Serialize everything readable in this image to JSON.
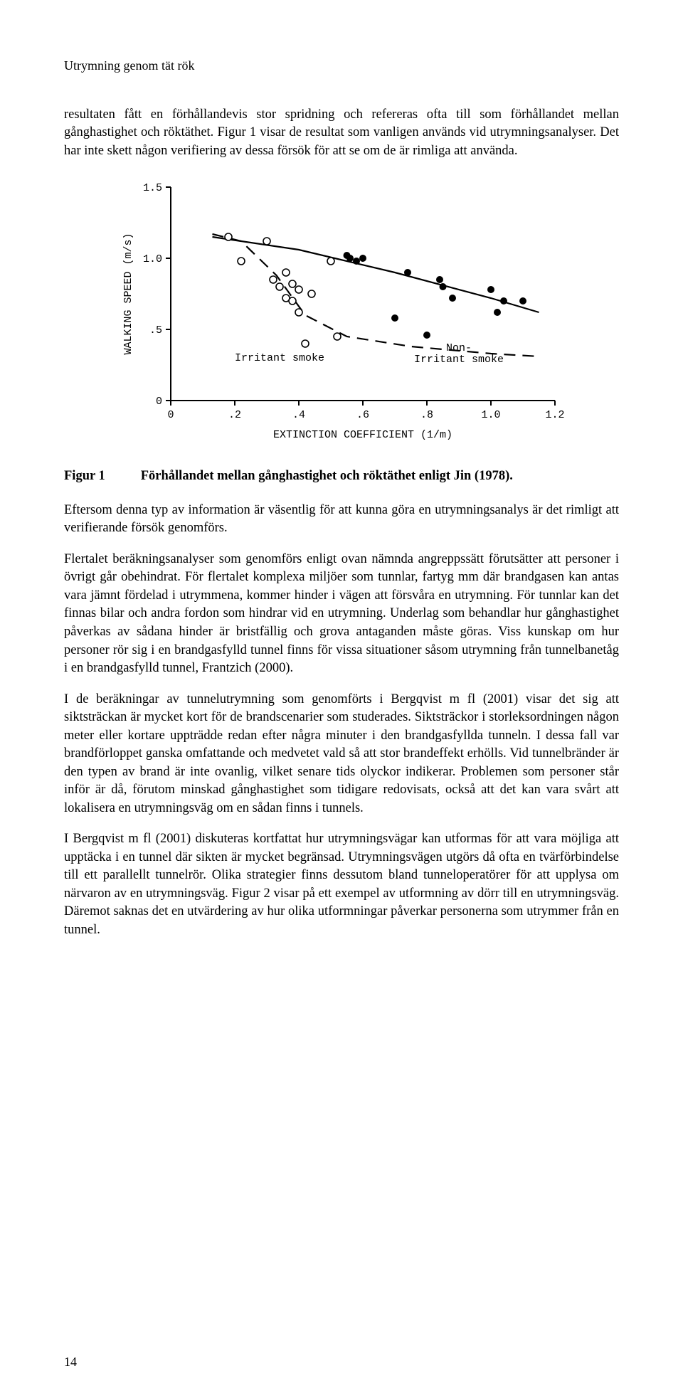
{
  "running_head": "Utrymning genom tät rök",
  "para1": "resultaten fått en förhållandevis stor spridning och refereras ofta till som förhållandet mellan gånghastighet och röktäthet. Figur 1 visar de resultat som vanligen används vid utrymningsanalyser. Det har inte skett någon verifiering av dessa försök för att se om de är rimliga att använda.",
  "figure": {
    "type": "scatter",
    "xlabel": "EXTINCTION COEFFICIENT (1/m)",
    "ylabel": "WALKING SPEED (m/s)",
    "xlim": [
      0,
      1.2
    ],
    "ylim": [
      0,
      1.5
    ],
    "xticks": [
      0,
      0.2,
      0.4,
      0.6,
      0.8,
      1.0,
      1.2
    ],
    "xtick_labels": [
      "0",
      ".2",
      ".4",
      ".6",
      ".8",
      "1.0",
      "1.2"
    ],
    "yticks": [
      0,
      0.5,
      1.0,
      1.5
    ],
    "ytick_labels": [
      "0",
      ".5",
      "1.0",
      "1.5"
    ],
    "series": [
      {
        "name": "Irritant smoke",
        "marker": "open-circle",
        "label_pos": {
          "x": 0.34,
          "y": 0.28
        },
        "points": [
          {
            "x": 0.18,
            "y": 1.15
          },
          {
            "x": 0.22,
            "y": 0.98
          },
          {
            "x": 0.3,
            "y": 1.12
          },
          {
            "x": 0.32,
            "y": 0.85
          },
          {
            "x": 0.34,
            "y": 0.8
          },
          {
            "x": 0.36,
            "y": 0.9
          },
          {
            "x": 0.36,
            "y": 0.72
          },
          {
            "x": 0.38,
            "y": 0.82
          },
          {
            "x": 0.38,
            "y": 0.7
          },
          {
            "x": 0.4,
            "y": 0.78
          },
          {
            "x": 0.4,
            "y": 0.62
          },
          {
            "x": 0.42,
            "y": 0.4
          },
          {
            "x": 0.44,
            "y": 0.75
          },
          {
            "x": 0.5,
            "y": 0.98
          },
          {
            "x": 0.52,
            "y": 0.45
          }
        ]
      },
      {
        "name": "Non-\nIrritant smoke",
        "marker": "filled-circle",
        "label_pos": {
          "x": 0.9,
          "y": 0.35
        },
        "points": [
          {
            "x": 0.55,
            "y": 1.02
          },
          {
            "x": 0.56,
            "y": 1.0
          },
          {
            "x": 0.58,
            "y": 0.98
          },
          {
            "x": 0.6,
            "y": 1.0
          },
          {
            "x": 0.7,
            "y": 0.58
          },
          {
            "x": 0.74,
            "y": 0.9
          },
          {
            "x": 0.8,
            "y": 0.46
          },
          {
            "x": 0.84,
            "y": 0.85
          },
          {
            "x": 0.85,
            "y": 0.8
          },
          {
            "x": 0.88,
            "y": 0.72
          },
          {
            "x": 1.0,
            "y": 0.78
          },
          {
            "x": 1.02,
            "y": 0.62
          },
          {
            "x": 1.04,
            "y": 0.7
          },
          {
            "x": 1.1,
            "y": 0.7
          }
        ]
      }
    ],
    "curves": {
      "solid": [
        {
          "x": 0.13,
          "y": 1.15
        },
        {
          "x": 0.4,
          "y": 1.06
        },
        {
          "x": 0.7,
          "y": 0.9
        },
        {
          "x": 1.0,
          "y": 0.72
        },
        {
          "x": 1.15,
          "y": 0.62
        }
      ],
      "dashed": [
        {
          "x": 0.13,
          "y": 1.17
        },
        {
          "x": 0.22,
          "y": 1.12
        },
        {
          "x": 0.33,
          "y": 0.88
        },
        {
          "x": 0.42,
          "y": 0.6
        },
        {
          "x": 0.55,
          "y": 0.45
        },
        {
          "x": 0.75,
          "y": 0.38
        },
        {
          "x": 1.0,
          "y": 0.33
        },
        {
          "x": 1.15,
          "y": 0.31
        }
      ]
    },
    "stroke_color": "#000000",
    "marker_radius": 5,
    "line_width_axis": 2,
    "line_width_curve": 2.2,
    "dash_pattern": "16 10",
    "font_family": "Courier New",
    "label_fontsize": 15
  },
  "fig_caption_label": "Figur 1",
  "fig_caption_text": "Förhållandet mellan gånghastighet och röktäthet enligt Jin (1978).",
  "para2": "Eftersom denna typ av information är väsentlig för att kunna göra en utrymningsanalys är det rimligt att verifierande försök genomförs.",
  "para3": "Flertalet beräkningsanalyser som genomförs enligt ovan nämnda angreppssätt förutsätter att personer i övrigt går obehindrat. För flertalet komplexa miljöer som tunnlar, fartyg mm där brandgasen kan antas vara jämnt fördelad i utrymmena, kommer hinder i vägen att försvåra en utrymning. För tunnlar kan det finnas bilar och andra fordon som hindrar vid en utrymning. Underlag som behandlar hur gånghastighet påverkas av sådana hinder är bristfällig och grova antaganden måste göras. Viss kunskap om hur personer rör sig i en brandgasfylld tunnel finns för vissa situationer såsom utrymning från tunnelbanetåg i en brandgasfylld tunnel, Frantzich (2000).",
  "para4": "I de beräkningar av tunnelutrymning som genomförts i Bergqvist m fl (2001) visar det sig att siktsträckan är mycket kort för de brandscenarier som studerades. Siktsträckor i storleksordningen någon meter eller kortare uppträdde redan efter några minuter i den brandgasfyllda tunneln. I dessa fall var brandförloppet ganska omfattande och medvetet vald så att stor brandeffekt erhölls. Vid tunnelbränder är den typen av brand är inte ovanlig, vilket senare tids olyckor indikerar. Problemen som personer står inför är då, förutom minskad gånghastighet som tidigare redovisats, också att det kan vara svårt att lokalisera en utrymningsväg om en sådan finns i tunnels.",
  "para5": "I Bergqvist m fl (2001) diskuteras kortfattat hur utrymningsvägar kan utformas för att vara möjliga att upptäcka i en tunnel där sikten är mycket begränsad. Utrymningsvägen utgörs då ofta en tvärförbindelse till ett parallellt tunnelrör. Olika strategier finns dessutom bland tunneloperatörer för att upplysa om närvaron av en utrymningsväg. Figur 2 visar på ett exempel av utformning av dörr till en utrymningsväg. Däremot saknas det en utvärdering av hur olika utformningar påverkar personerna som utrymmer från en tunnel.",
  "page_number": "14"
}
